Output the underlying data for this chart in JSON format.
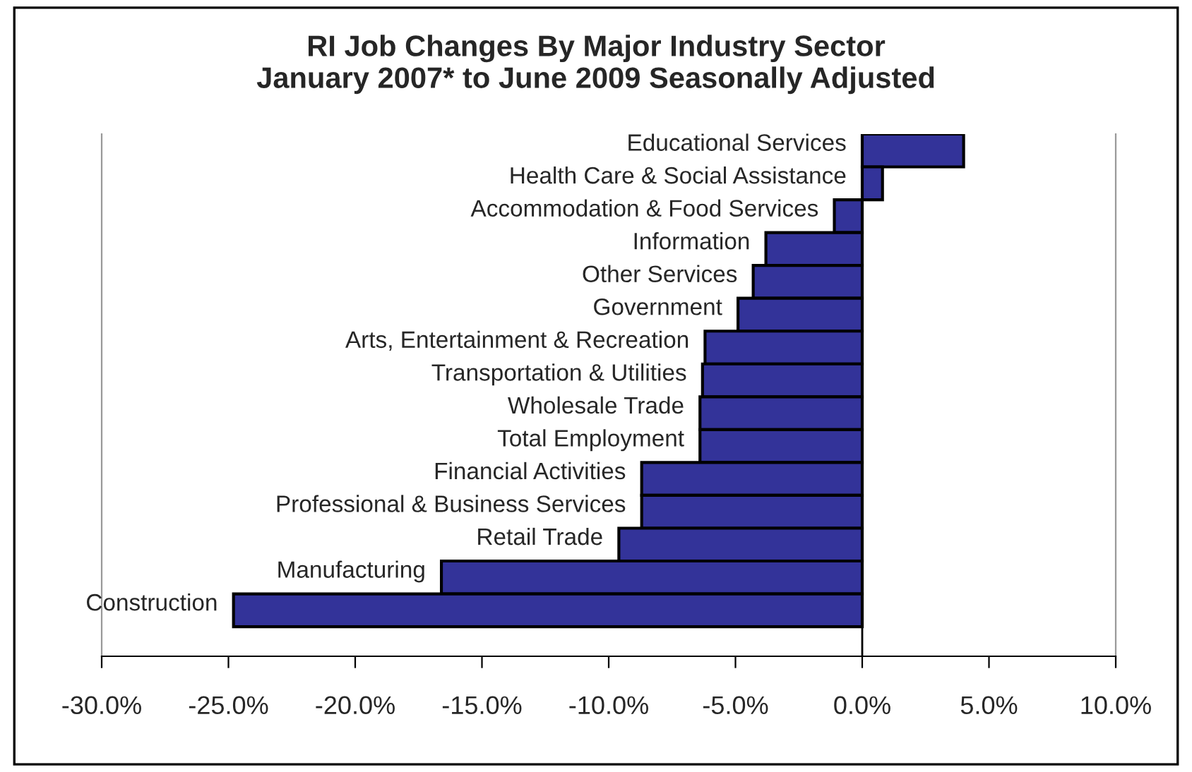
{
  "chart_data": {
    "type": "bar",
    "orientation": "horizontal",
    "title": "RI Job Changes By Major Industry Sector\nJanuary 2007* to June 2009 Seasonally Adjusted",
    "categories": [
      "Educational Services",
      "Health Care & Social Assistance",
      "Accommodation & Food Services",
      "Information",
      "Other Services",
      "Government",
      "Arts, Entertainment & Recreation",
      "Transportation & Utilities",
      "Wholesale Trade",
      "Total Employment",
      "Financial Activities",
      "Professional & Business Services",
      "Retail Trade",
      "Manufacturing",
      "Construction"
    ],
    "values": [
      4.0,
      0.8,
      -1.1,
      -3.8,
      -4.3,
      -4.9,
      -6.2,
      -6.3,
      -6.4,
      -6.4,
      -8.7,
      -8.7,
      -9.6,
      -16.6,
      -24.8
    ],
    "color": "#333399",
    "xlim": [
      -30,
      10
    ],
    "xticks": [
      {
        "value": -30,
        "label": "-30.0%"
      },
      {
        "value": -25,
        "label": "-25.0%"
      },
      {
        "value": -20,
        "label": "-20.0%"
      },
      {
        "value": -15,
        "label": "-15.0%"
      },
      {
        "value": -10,
        "label": "-10.0%"
      },
      {
        "value": -5,
        "label": "-5.0%"
      },
      {
        "value": 0,
        "label": "0.0%"
      },
      {
        "value": 5,
        "label": "5.0%"
      },
      {
        "value": 10,
        "label": "10.0%"
      }
    ],
    "legend": false
  }
}
